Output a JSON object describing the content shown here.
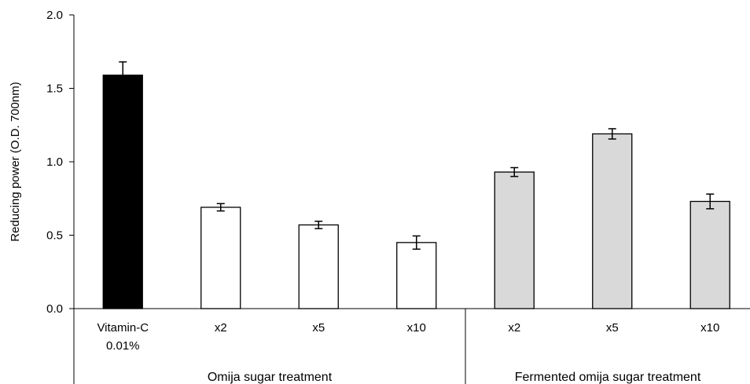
{
  "chart_data": {
    "type": "bar",
    "ylabel": "Reducing power (O.D. 700nm)",
    "xlabel": "",
    "ylim": [
      0,
      2.0
    ],
    "yticks": [
      "0.0",
      "0.5",
      "1.0",
      "1.5",
      "2.0"
    ],
    "grid": false,
    "legend": "none",
    "categories": [
      {
        "label_lines": [
          "Vitamin-C",
          "0.01%"
        ],
        "value": 1.59,
        "error": 0.09,
        "fill": "#000000"
      },
      {
        "label_lines": [
          "x2"
        ],
        "value": 0.69,
        "error": 0.025,
        "fill": "#ffffff"
      },
      {
        "label_lines": [
          "x5"
        ],
        "value": 0.57,
        "error": 0.025,
        "fill": "#ffffff"
      },
      {
        "label_lines": [
          "x10"
        ],
        "value": 0.45,
        "error": 0.045,
        "fill": "#ffffff"
      },
      {
        "label_lines": [
          "x2"
        ],
        "value": 0.93,
        "error": 0.03,
        "fill": "#d9d9d9"
      },
      {
        "label_lines": [
          "x5"
        ],
        "value": 1.19,
        "error": 0.035,
        "fill": "#d9d9d9"
      },
      {
        "label_lines": [
          "x10"
        ],
        "value": 0.73,
        "error": 0.05,
        "fill": "#d9d9d9"
      }
    ],
    "groups": [
      {
        "label": "Omija sugar treatment",
        "span": [
          0,
          3
        ]
      },
      {
        "label": "Fermented omija sugar treatment",
        "span": [
          4,
          6
        ]
      }
    ]
  }
}
